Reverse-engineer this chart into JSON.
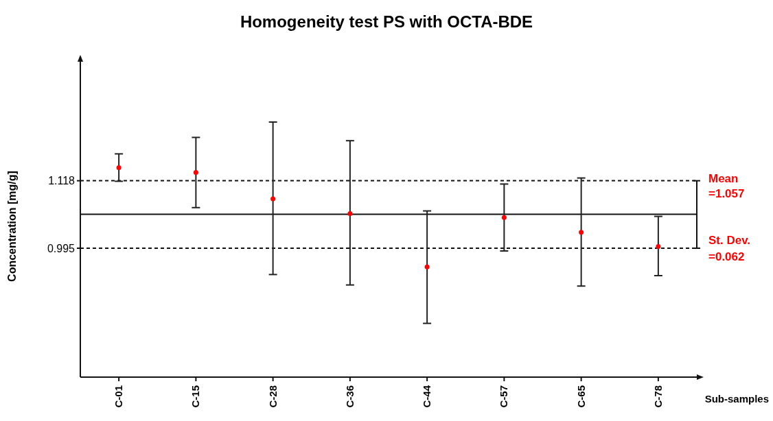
{
  "chart_data": {
    "type": "scatter",
    "title": "Homogeneity test PS with OCTA-BDE",
    "xlabel": "Sub-samples",
    "ylabel": "Concentration [mg/g]",
    "categories": [
      "C-01",
      "C-15",
      "C-28",
      "C-36",
      "C-44",
      "C-57",
      "C-65",
      "C-78"
    ],
    "series": [
      {
        "color": "#ff0000",
        "values": [
          1.142,
          1.133,
          1.085,
          1.058,
          0.961,
          1.051,
          1.024,
          0.998
        ],
        "errors": [
          [
            1.117,
            1.167
          ],
          [
            1.069,
            1.197
          ],
          [
            0.947,
            1.225
          ],
          [
            0.928,
            1.191
          ],
          [
            0.858,
            1.063
          ],
          [
            0.99,
            1.112
          ],
          [
            0.926,
            1.123
          ],
          [
            0.945,
            1.053
          ]
        ]
      }
    ],
    "marker": "circle",
    "ylim": [
      0.76,
      1.335
    ],
    "yticks": [
      1.118,
      0.995
    ],
    "ref_lines": [
      {
        "axis": "y",
        "value": 1.118,
        "line_style": "dashed"
      },
      {
        "axis": "y",
        "value": 1.057,
        "line_style": "solid"
      },
      {
        "axis": "y",
        "value": 0.995,
        "line_style": "dashed"
      }
    ],
    "annotations": [
      "Mean",
      "=1.057",
      "St. Dev.",
      "=0.062"
    ]
  }
}
